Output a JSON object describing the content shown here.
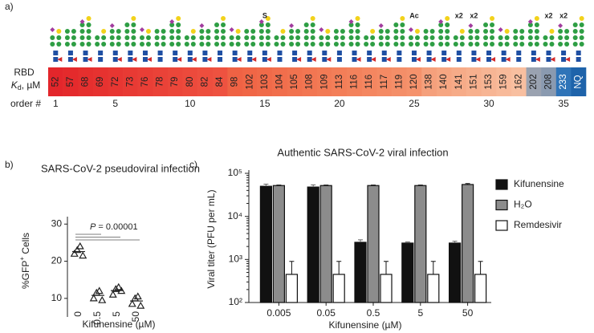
{
  "chart_data": [
    {
      "type": "heatmap",
      "panel_label": "a)",
      "row_label": "RBD",
      "value_label_parts": [
        "K",
        "d",
        ", µM"
      ],
      "values": [
        52,
        57,
        68,
        69,
        72,
        73,
        76,
        78,
        79,
        80,
        82,
        84,
        98,
        102,
        103,
        104,
        105,
        108,
        109,
        113,
        116,
        116,
        117,
        119,
        120,
        138,
        140,
        141,
        151,
        153,
        159,
        162,
        202,
        208,
        233,
        null
      ],
      "na_label": "NQ",
      "colors": [
        "#e3262b",
        "#e42a2c",
        "#e52f2e",
        "#e63230",
        "#e73632",
        "#e83a34",
        "#e93e36",
        "#ea4238",
        "#eb463a",
        "#ec4a3c",
        "#ed4e3e",
        "#ee5240",
        "#ef6244",
        "#f06646",
        "#f06a49",
        "#f16e4c",
        "#f1724f",
        "#f27652",
        "#f27a55",
        "#f37e58",
        "#f3825c",
        "#f48660",
        "#f48a64",
        "#f48e68",
        "#f5926c",
        "#f5a07c",
        "#f6a682",
        "#f6ab88",
        "#f7b08e",
        "#f7b594",
        "#f8ba9a",
        "#f8bfa0",
        "#9aa2b0",
        "#8a9ab0",
        "#2f74b8",
        "#1e63aa"
      ],
      "order_label": "order #",
      "order_ticks": [
        1,
        5,
        10,
        15,
        20,
        25,
        30,
        35
      ],
      "annotations": [
        {
          "text": "S",
          "position": 15
        },
        {
          "text": "Ac",
          "position": 25
        },
        {
          "text": "x2",
          "position": 28
        },
        {
          "text": "x2",
          "position": 29
        },
        {
          "text": "x2",
          "position": 34
        },
        {
          "text": "x2",
          "position": 35
        }
      ]
    },
    {
      "type": "dot",
      "panel_label": "b)",
      "title": "SARS-CoV-2 pseudoviral infection",
      "y_label_parts": [
        "%GFP",
        "+",
        " Cells"
      ],
      "x_label": "Kifunensine (µM)",
      "categories": [
        "0",
        "0.5",
        "5",
        "50"
      ],
      "values": [
        [
          22,
          23,
          24,
          21.5
        ],
        [
          10,
          11.5,
          12,
          9.5
        ],
        [
          11,
          12.5,
          13,
          12
        ],
        [
          8.5,
          10,
          10.5,
          8
        ]
      ],
      "means": [
        22.6,
        10.8,
        12.1,
        9.3
      ],
      "color": "#222222",
      "ylim": [
        5,
        32
      ],
      "yticks": [
        10,
        20,
        30
      ],
      "annotation_parts": [
        "P",
        " = 0.00001"
      ]
    },
    {
      "type": "bar",
      "panel_label": "c)",
      "title": "Authentic SARS-CoV-2 viral infection",
      "y_label": "Viral titer (PFU per mL)",
      "x_label": "Kifunensine (µM)",
      "log_scale": true,
      "categories": [
        "0.005",
        "0.05",
        "0.5",
        "5",
        "50"
      ],
      "series": [
        {
          "name": "Kifunensine",
          "color": "#111111",
          "values": [
            50000,
            48000,
            2500,
            2400,
            2400
          ],
          "errors": [
            6000,
            6000,
            350,
            150,
            250
          ]
        },
        {
          "name": "H₂O",
          "color": "#8c8c8c",
          "values": [
            52000,
            52000,
            52000,
            52000,
            55000
          ],
          "errors": [
            1500,
            1500,
            1500,
            1500,
            3000
          ]
        },
        {
          "name": "Remdesivir",
          "color": "#ffffff",
          "values": [
            450,
            450,
            450,
            450,
            450
          ],
          "errors": [
            450,
            450,
            450,
            450,
            450
          ]
        }
      ],
      "ylim": [
        100,
        100000
      ],
      "yticks": [
        {
          "value": 100,
          "label": "10²"
        },
        {
          "value": 1000,
          "label": "10³"
        },
        {
          "value": 10000,
          "label": "10⁴"
        },
        {
          "value": 100000,
          "label": "10⁵"
        }
      ],
      "legend": "right"
    }
  ]
}
